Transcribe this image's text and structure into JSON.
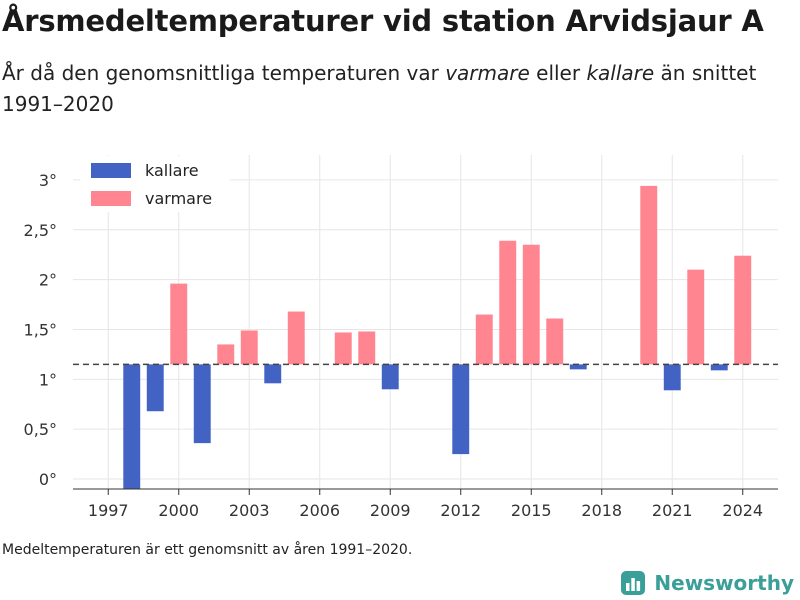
{
  "title": "Årsmedeltemperaturer vid station Arvidsjaur A",
  "subtitle": {
    "part1": "År då den genomsnittliga temperaturen var ",
    "warmer_word": "varmare",
    "part2": " eller ",
    "colder_word": "kallare",
    "part3": " än snittet 1991–2020"
  },
  "footnote": "Medeltemperaturen är ett genomsnitt av åren 1991–2020.",
  "brand": {
    "name": "Newsworthy",
    "icon": "newsworthy-logo-icon"
  },
  "colors": {
    "kallare": "#4263c3",
    "varmare": "#ff8591",
    "grid": "#e6e6e6",
    "reference_line": "#444444"
  },
  "chart_data": {
    "type": "bar",
    "baseline": 1.15,
    "ylim": [
      -0.1,
      3.25
    ],
    "yticks": [
      0,
      0.5,
      1,
      1.5,
      2,
      2.5,
      3
    ],
    "ytick_labels": [
      "0°",
      "0,5°",
      "1°",
      "1,5°",
      "2°",
      "2,5°",
      "3°"
    ],
    "xlim": [
      1995.5,
      2025.5
    ],
    "xticks": [
      1997,
      2000,
      2003,
      2006,
      2009,
      2012,
      2015,
      2018,
      2021,
      2024
    ],
    "xtick_labels": [
      "1997",
      "2000",
      "2003",
      "2006",
      "2009",
      "2012",
      "2015",
      "2018",
      "2021",
      "2024"
    ],
    "grid": true,
    "legend": [
      {
        "key": "kallare",
        "label": "kallare"
      },
      {
        "key": "varmare",
        "label": "varmare"
      }
    ],
    "legend_position": "top-left",
    "x": [
      1998,
      1999,
      2000,
      2001,
      2002,
      2003,
      2004,
      2005,
      2007,
      2008,
      2009,
      2012,
      2013,
      2014,
      2015,
      2016,
      2017,
      2020,
      2021,
      2022,
      2023,
      2024
    ],
    "values": [
      -0.1,
      0.68,
      1.96,
      0.36,
      1.35,
      1.49,
      0.96,
      1.68,
      1.47,
      1.48,
      0.9,
      0.25,
      1.65,
      2.39,
      2.35,
      1.61,
      1.1,
      2.94,
      0.89,
      2.1,
      1.09,
      2.24
    ]
  }
}
